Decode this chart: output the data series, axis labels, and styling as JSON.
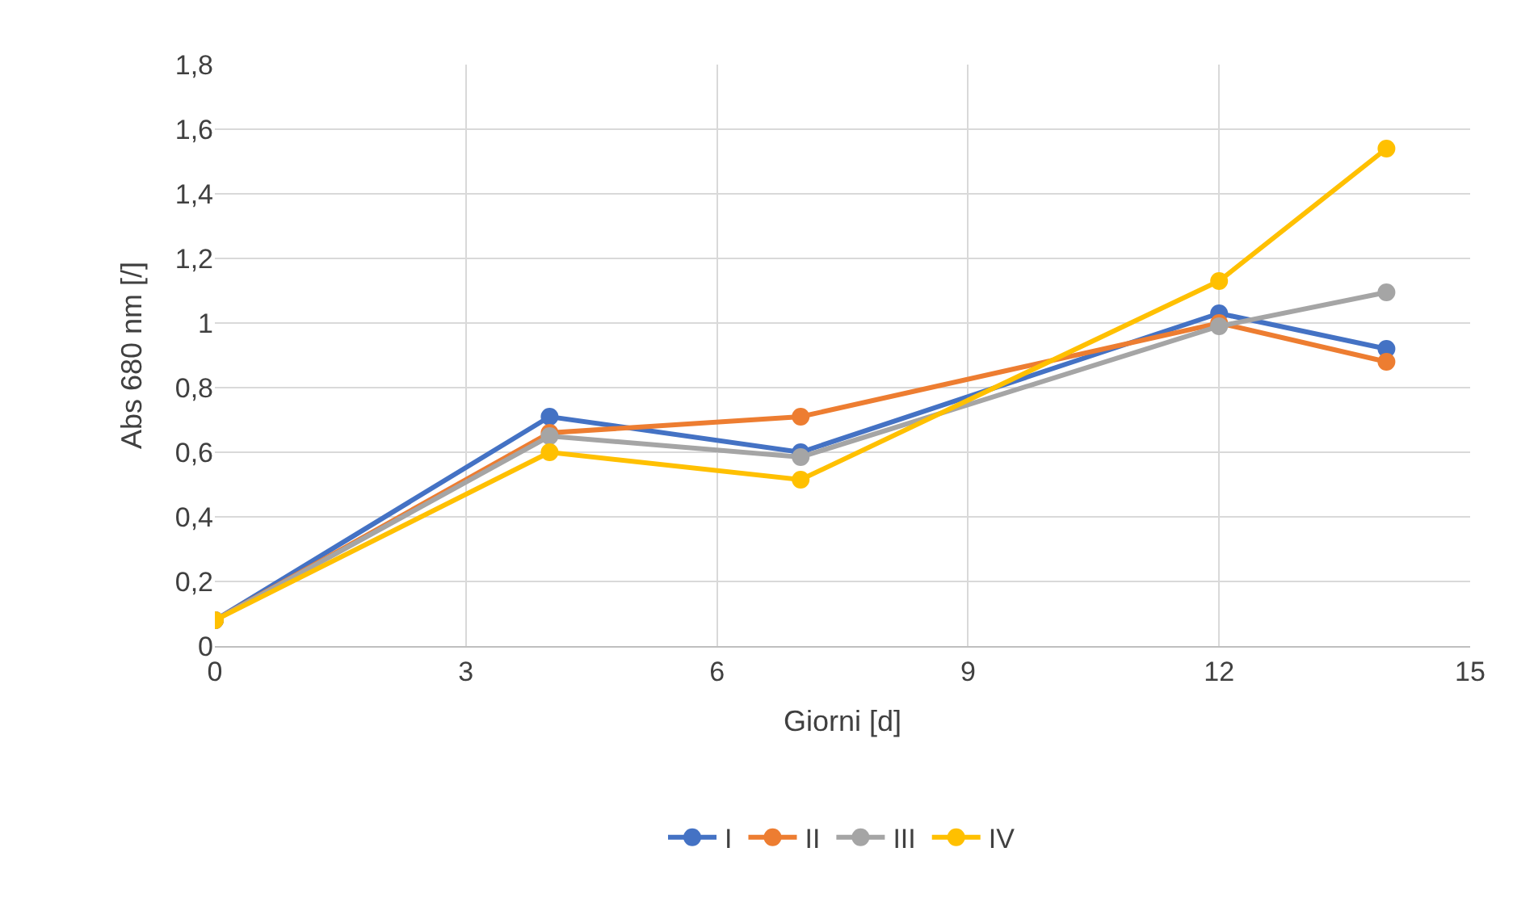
{
  "chart_data": {
    "type": "line",
    "xlabel": "Giorni [d]",
    "ylabel": "Abs 680 nm [/]",
    "x": [
      0,
      4,
      7,
      12,
      14
    ],
    "series": [
      {
        "name": "I",
        "color": "#4472c4",
        "values": [
          0.08,
          0.71,
          0.6,
          1.03,
          0.92
        ]
      },
      {
        "name": "II",
        "color": "#ed7d31",
        "values": [
          0.08,
          0.66,
          0.71,
          1.0,
          0.88
        ]
      },
      {
        "name": "III",
        "color": "#a5a5a5",
        "values": [
          0.08,
          0.65,
          0.585,
          0.99,
          1.095
        ]
      },
      {
        "name": "IV",
        "color": "#ffc000",
        "values": [
          0.08,
          0.6,
          0.515,
          1.13,
          1.54
        ]
      }
    ],
    "xlim": [
      0,
      15
    ],
    "xticks": [
      0,
      3,
      6,
      9,
      12,
      15
    ],
    "ylim": [
      0,
      1.8
    ],
    "yticks": [
      0,
      {
        "value": 0.2,
        "label": "0,2"
      },
      {
        "value": 0.4,
        "label": "0,4"
      },
      {
        "value": 0.6,
        "label": "0,6"
      },
      {
        "value": 0.8,
        "label": "0,8"
      },
      1,
      {
        "value": 1.2,
        "label": "1,2"
      },
      {
        "value": 1.4,
        "label": "1,4"
      },
      {
        "value": 1.6,
        "label": "1,6"
      },
      {
        "value": 1.8,
        "label": "1,8"
      }
    ],
    "grid": true,
    "legend": "bottom",
    "marker": "circle",
    "line_style": "solid"
  }
}
